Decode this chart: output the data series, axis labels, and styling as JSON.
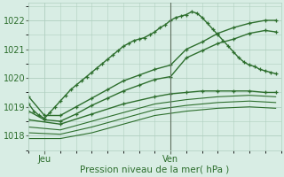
{
  "background_color": "#d8ede4",
  "grid_color": "#b0cfc0",
  "line_color": "#2d6e2d",
  "marker_color": "#2d6e2d",
  "xlabel": "Pression niveau de la mer( hPa )",
  "xlabel_fontsize": 7.5,
  "tick_label_color": "#2d6e2d",
  "tick_fontsize": 7,
  "ylim": [
    1017.6,
    1022.6
  ],
  "yticks": [
    1018,
    1019,
    1020,
    1021,
    1022
  ],
  "xlim": [
    0,
    48
  ],
  "xtick_positions": [
    3,
    27
  ],
  "xtick_labels": [
    "Jeu",
    "Ven"
  ],
  "series": [
    {
      "x": [
        0,
        1,
        2,
        3,
        4,
        5,
        6,
        7,
        8,
        9,
        10,
        11,
        12,
        13,
        14,
        15,
        16,
        17,
        18,
        19,
        20,
        21,
        22,
        23,
        24,
        25,
        26,
        27,
        28,
        29,
        30,
        31,
        32,
        33,
        34,
        35,
        36,
        37,
        38,
        39,
        40,
        41,
        42,
        43,
        44,
        45,
        46,
        47
      ],
      "y": [
        1019.1,
        1018.85,
        1018.7,
        1018.6,
        1018.8,
        1019.0,
        1019.2,
        1019.4,
        1019.6,
        1019.75,
        1019.9,
        1020.05,
        1020.2,
        1020.35,
        1020.5,
        1020.65,
        1020.8,
        1020.95,
        1021.1,
        1021.2,
        1021.3,
        1021.35,
        1021.4,
        1021.5,
        1021.6,
        1021.75,
        1021.85,
        1022.0,
        1022.1,
        1022.15,
        1022.2,
        1022.3,
        1022.25,
        1022.1,
        1021.9,
        1021.7,
        1021.5,
        1021.3,
        1021.1,
        1020.9,
        1020.7,
        1020.55,
        1020.45,
        1020.4,
        1020.3,
        1020.25,
        1020.2,
        1020.15
      ],
      "marker": true,
      "linewidth": 1.0
    },
    {
      "x": [
        0,
        3,
        6,
        9,
        12,
        15,
        18,
        21,
        24,
        27,
        30,
        33,
        36,
        39,
        42,
        45,
        47
      ],
      "y": [
        1019.35,
        1018.7,
        1018.7,
        1019.0,
        1019.3,
        1019.6,
        1019.9,
        1020.1,
        1020.3,
        1020.45,
        1021.0,
        1021.25,
        1021.55,
        1021.75,
        1021.9,
        1022.0,
        1022.0
      ],
      "marker": true,
      "linewidth": 1.0
    },
    {
      "x": [
        0,
        3,
        6,
        9,
        12,
        15,
        18,
        21,
        24,
        27,
        30,
        33,
        36,
        39,
        42,
        45,
        47
      ],
      "y": [
        1018.85,
        1018.55,
        1018.5,
        1018.75,
        1019.05,
        1019.3,
        1019.55,
        1019.75,
        1019.95,
        1020.05,
        1020.7,
        1020.95,
        1021.2,
        1021.35,
        1021.55,
        1021.65,
        1021.6
      ],
      "marker": true,
      "linewidth": 1.0
    },
    {
      "x": [
        0,
        6,
        12,
        18,
        24,
        27,
        30,
        33,
        36,
        39,
        42,
        45,
        47
      ],
      "y": [
        1018.55,
        1018.4,
        1018.75,
        1019.1,
        1019.35,
        1019.45,
        1019.5,
        1019.55,
        1019.55,
        1019.55,
        1019.55,
        1019.5,
        1019.5
      ],
      "marker": true,
      "linewidth": 1.0
    },
    {
      "x": [
        0,
        6,
        12,
        18,
        24,
        30,
        36,
        42,
        47
      ],
      "y": [
        1018.3,
        1018.2,
        1018.5,
        1018.8,
        1019.1,
        1019.25,
        1019.35,
        1019.4,
        1019.35
      ],
      "marker": false,
      "linewidth": 0.8
    },
    {
      "x": [
        0,
        6,
        12,
        18,
        24,
        30,
        36,
        42,
        47
      ],
      "y": [
        1018.1,
        1018.05,
        1018.3,
        1018.6,
        1018.9,
        1019.05,
        1019.15,
        1019.2,
        1019.15
      ],
      "marker": false,
      "linewidth": 0.8
    },
    {
      "x": [
        0,
        6,
        12,
        18,
        24,
        30,
        36,
        42,
        47
      ],
      "y": [
        1017.9,
        1017.9,
        1018.1,
        1018.4,
        1018.7,
        1018.85,
        1018.95,
        1019.0,
        1018.95
      ],
      "marker": false,
      "linewidth": 0.8
    }
  ],
  "vline_x": 27,
  "vline_color": "#607060"
}
